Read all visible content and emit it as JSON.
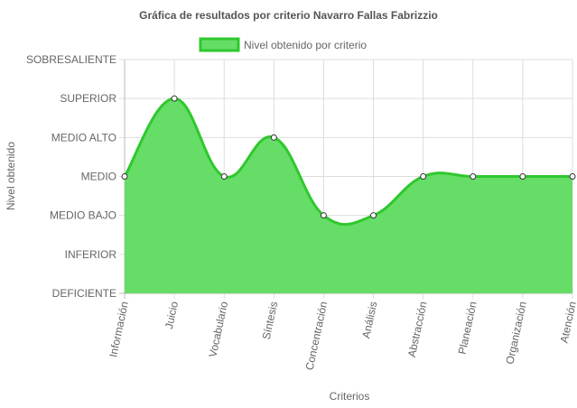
{
  "chart_data": {
    "type": "area",
    "title": "Gráfica de resultados por criterio Navarro Fallas Fabrizzio",
    "xlabel": "Criterios",
    "ylabel": "Nivel obtenido",
    "legend_position": "top",
    "grid": true,
    "categories": [
      "Información",
      "Juicio",
      "Vocabulario",
      "Síntesis",
      "Concentración",
      "Análisis",
      "Abstracción",
      "Planeación",
      "Organización",
      "Atención"
    ],
    "y_levels": [
      "DEFICIENTE",
      "INFERIOR",
      "MEDIO BAJO",
      "MEDIO",
      "MEDIO ALTO",
      "SUPERIOR",
      "SOBRESALIENTE"
    ],
    "ylim": [
      0,
      6
    ],
    "series": [
      {
        "name": "Nivel obtenido por criterio",
        "values": [
          3,
          5,
          3,
          4,
          2,
          2,
          3,
          3,
          3,
          3
        ],
        "fill": "#66dd66",
        "stroke": "#2ec82e"
      }
    ]
  }
}
